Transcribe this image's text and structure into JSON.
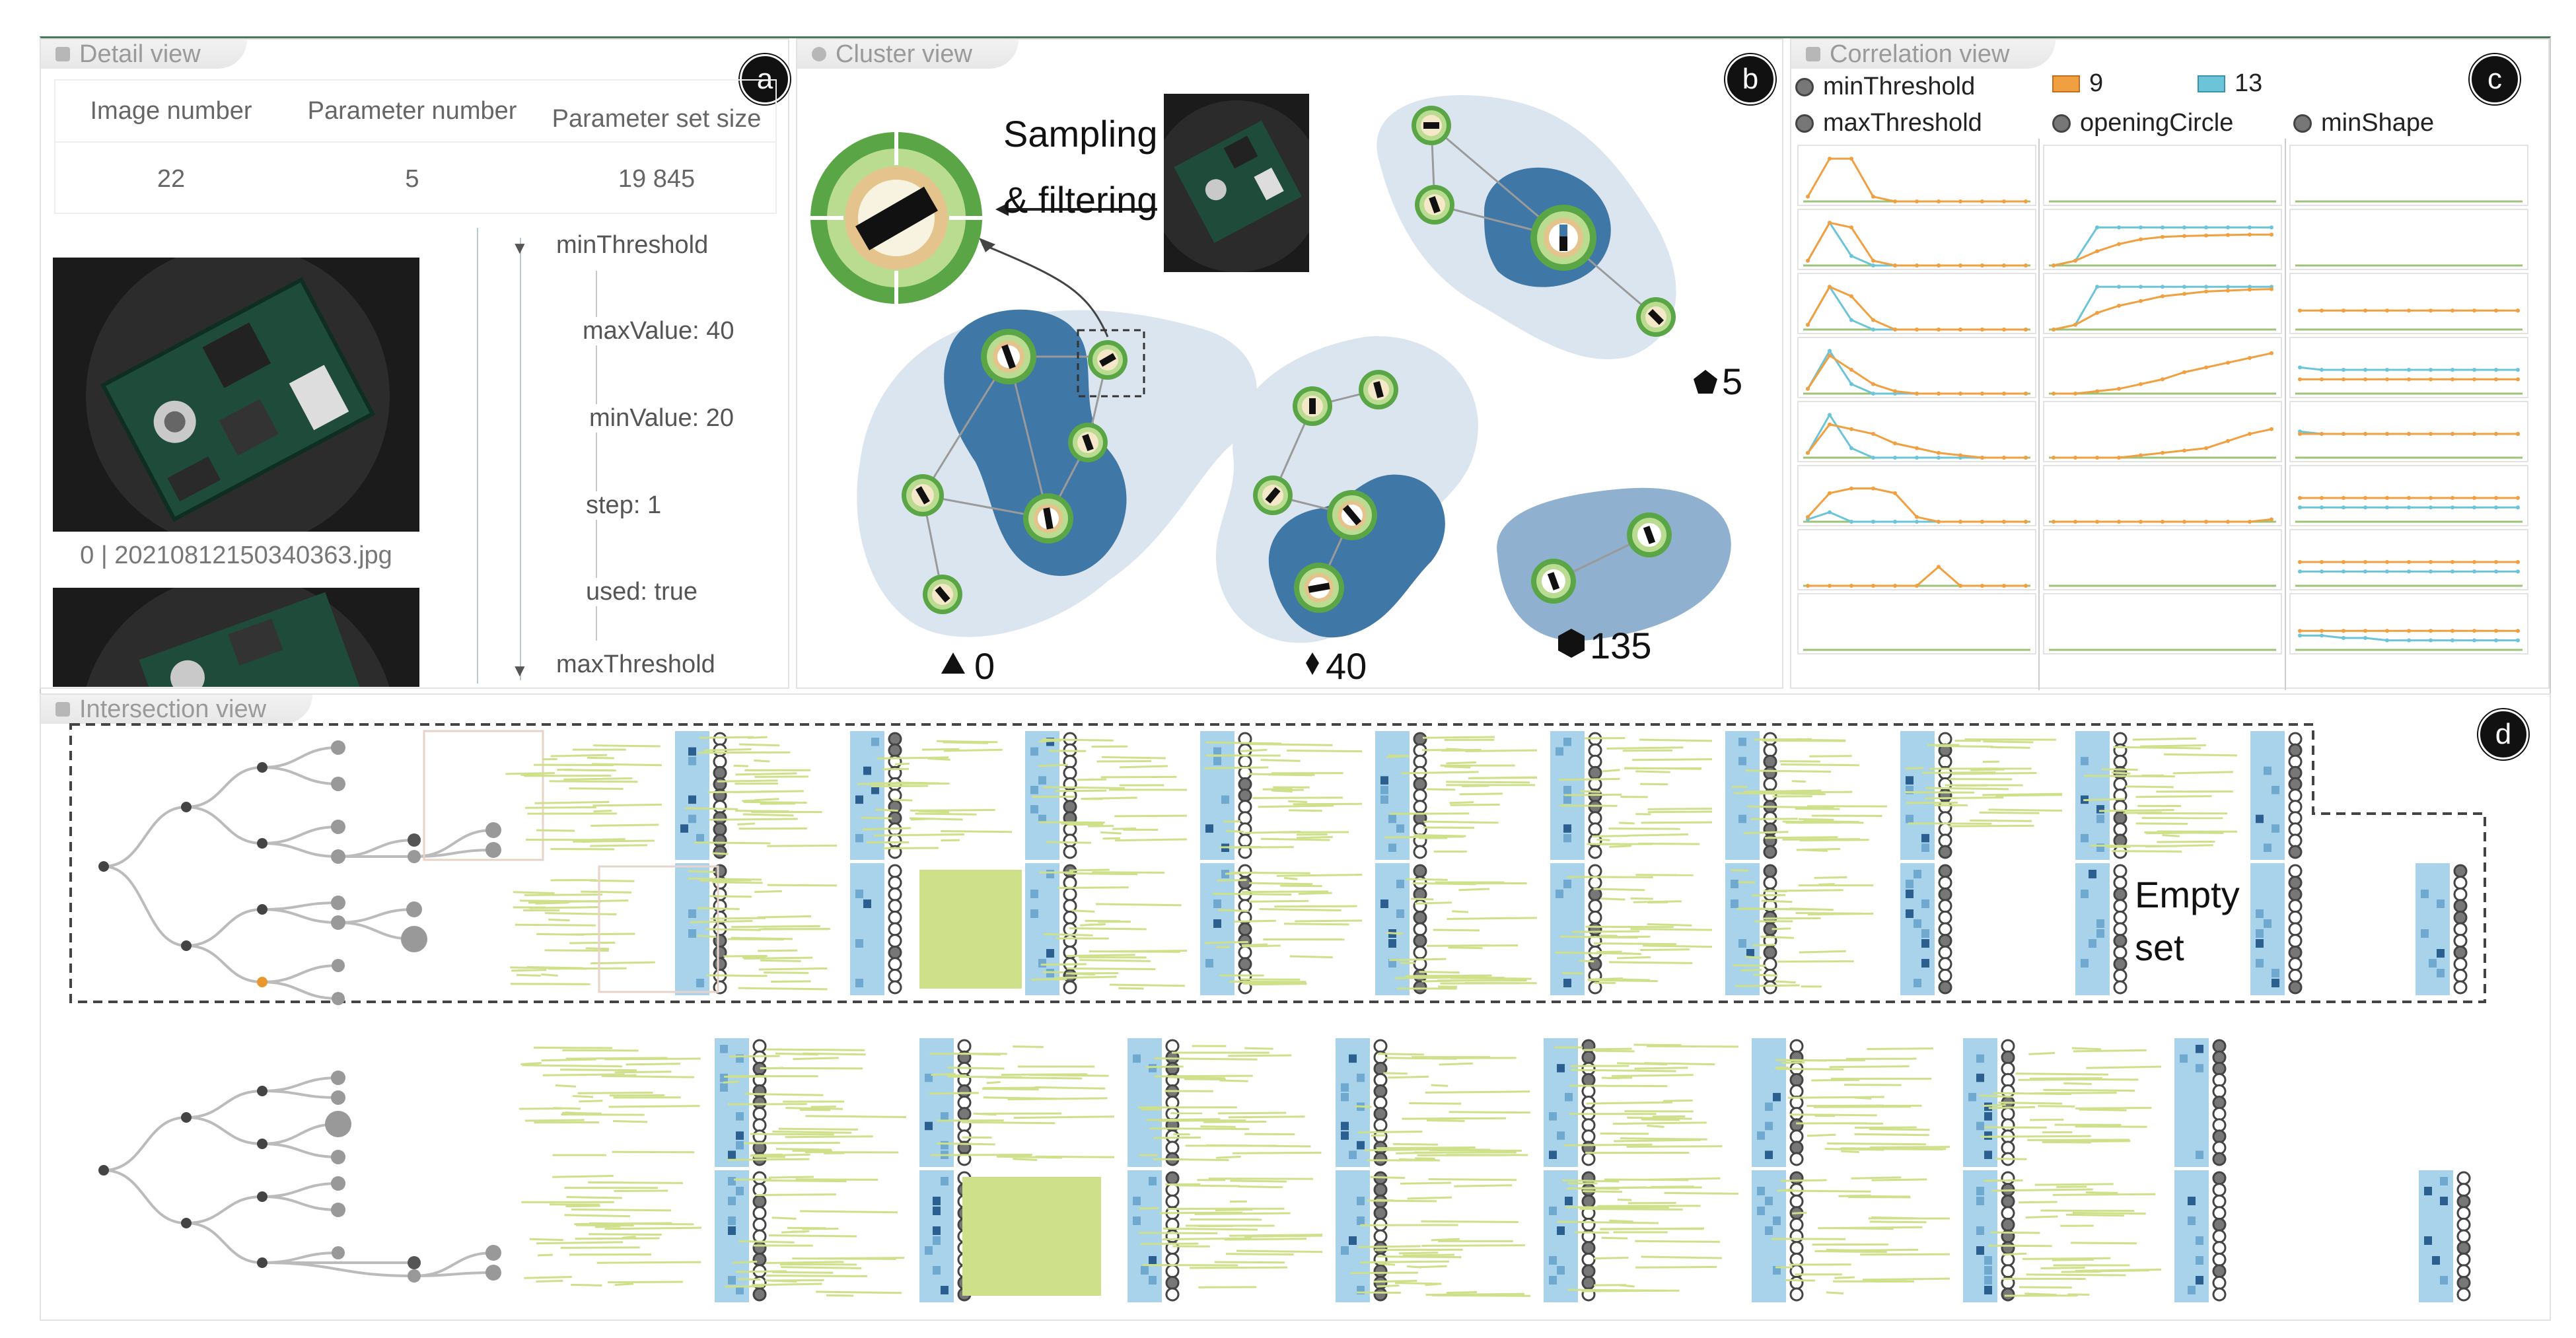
{
  "detail_view": {
    "title": "Detail view",
    "badge": "a",
    "table_headers": [
      "Image number",
      "Parameter number",
      "Parameter set size"
    ],
    "table_values": [
      "22",
      "5",
      "19 845"
    ],
    "image_caption": "0 | 20210812150340363.jpg",
    "tree": {
      "root": "minThreshold",
      "items": [
        "maxValue: 40",
        "minValue: 20",
        "step: 1",
        "used: true"
      ],
      "next": "maxThreshold"
    }
  },
  "cluster_view": {
    "title": "Cluster view",
    "badge": "b",
    "annotation_line1": "Sampling",
    "annotation_line2": "& filtering",
    "clusters": [
      {
        "shape": "triangle",
        "label": "0"
      },
      {
        "shape": "diamond",
        "label": "40"
      },
      {
        "shape": "pentagon",
        "label": "5"
      },
      {
        "shape": "hexagon",
        "label": "135"
      }
    ]
  },
  "correlation_view": {
    "title": "Correlation view",
    "badge": "c",
    "legend_params": [
      "minThreshold",
      "maxThreshold",
      "openingCircle",
      "minShape"
    ],
    "legend_series": [
      {
        "label": "9",
        "color": "#f0a040"
      },
      {
        "label": "13",
        "color": "#6cc4d8"
      }
    ],
    "colors": {
      "orange": "#f0a040",
      "blue": "#6cc4d8",
      "grid": "#9dc27a"
    }
  },
  "intersection_view": {
    "title": "Intersection view",
    "badge": "d",
    "empty_set_line1": "Empty",
    "empty_set_line2": "set"
  },
  "colors": {
    "cluster_light": "#dfe8f2",
    "cluster_mid": "#9fb9d3",
    "cluster_dark": "#3f77a6",
    "green": "#5aa646",
    "lime": "#cfe08a",
    "matrix_blue": "#a9d3ea"
  }
}
